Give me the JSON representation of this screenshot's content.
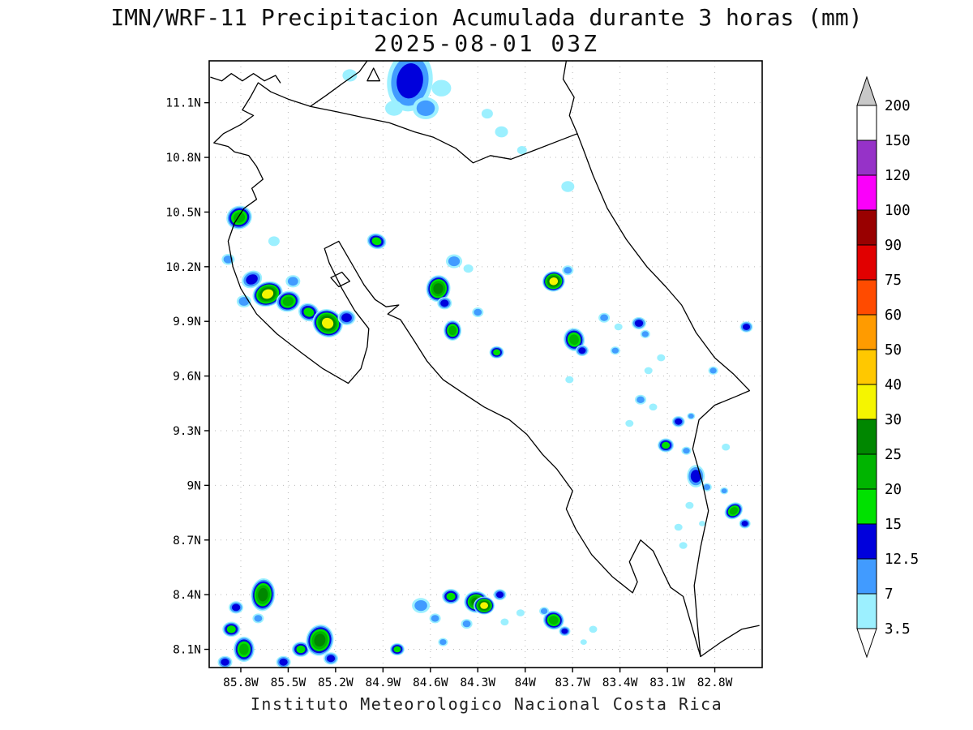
{
  "title": {
    "line1": "IMN/WRF-11 Precipitacion Acumulada durante 3 horas (mm)",
    "line2": "2025-08-01 03Z"
  },
  "caption": "Instituto Meteorologico Nacional Costa Rica",
  "chart_data": {
    "type": "heatmap",
    "title": "IMN/WRF-11 Precipitacion Acumulada durante 3 horas (mm)",
    "valid_time": "2025-08-01 03Z",
    "model": "IMN/WRF-11",
    "units": "mm",
    "x_axis": {
      "ticks": [
        "85.8W",
        "85.5W",
        "85.2W",
        "84.9W",
        "84.6W",
        "84.3W",
        "84W",
        "83.7W",
        "83.4W",
        "83.1W",
        "82.8W"
      ],
      "range_deg_w": [
        86.0,
        82.5
      ]
    },
    "y_axis": {
      "ticks": [
        "11.1N",
        "10.8N",
        "10.5N",
        "10.2N",
        "9.9N",
        "9.6N",
        "9.3N",
        "9N",
        "8.7N",
        "8.4N",
        "8.1N"
      ],
      "range_deg_n": [
        11.33,
        8.0
      ]
    },
    "colorbar": {
      "levels": [
        3.5,
        7,
        12.5,
        15,
        20,
        25,
        30,
        40,
        50,
        60,
        75,
        90,
        100,
        120,
        150,
        200
      ],
      "labels_top_to_bottom": [
        "200",
        "150",
        "120",
        "100",
        "90",
        "75",
        "60",
        "50",
        "40",
        "30",
        "25",
        "20",
        "15",
        "12.5",
        "7",
        "3.5"
      ],
      "colors_low_to_high": [
        "#9cf0ff",
        "#419bff",
        "#0000dc",
        "#00e100",
        "#00b400",
        "#008700",
        "#f5f500",
        "#ffc800",
        "#ff9b00",
        "#ff4b00",
        "#e10000",
        "#990000",
        "#fa00fa",
        "#9632c8",
        "#ffffff"
      ],
      "over_color": "#c8c8c8",
      "under_color": "#ffffff"
    },
    "cells_format": "[lon_w, lat_n, peak_mm, radius_px, aspect_ry_rx, rotation_deg]",
    "cells": [
      [
        84.73,
        11.22,
        12.5,
        28,
        1.35,
        8
      ],
      [
        84.63,
        11.07,
        7,
        16
      ],
      [
        84.83,
        11.07,
        3.5,
        11
      ],
      [
        84.53,
        11.18,
        3.5,
        12
      ],
      [
        85.11,
        11.25,
        3.5,
        9
      ],
      [
        84.15,
        10.94,
        3.5,
        8
      ],
      [
        84.02,
        10.84,
        3.5,
        6
      ],
      [
        84.24,
        11.04,
        3.5,
        7
      ],
      [
        83.73,
        10.64,
        3.5,
        8
      ],
      [
        85.81,
        10.47,
        20,
        16,
        0.9,
        -20
      ],
      [
        85.88,
        10.24,
        7,
        8
      ],
      [
        85.59,
        10.34,
        3.5,
        7
      ],
      [
        84.94,
        10.34,
        15,
        12,
        0.8,
        15
      ],
      [
        84.45,
        10.23,
        7,
        10
      ],
      [
        84.36,
        10.19,
        3.5,
        6
      ],
      [
        85.73,
        10.13,
        12.5,
        13,
        0.8,
        -25
      ],
      [
        85.63,
        10.05,
        30,
        19,
        0.8,
        -20
      ],
      [
        85.5,
        10.01,
        20,
        15,
        0.85,
        -15
      ],
      [
        85.78,
        10.01,
        7,
        9
      ],
      [
        85.37,
        9.95,
        15,
        13,
        0.85,
        20
      ],
      [
        85.25,
        9.89,
        30,
        19,
        0.9,
        25
      ],
      [
        85.13,
        9.92,
        12.5,
        11
      ],
      [
        85.47,
        10.12,
        7,
        9
      ],
      [
        84.55,
        10.08,
        25,
        15,
        1.1,
        10
      ],
      [
        84.51,
        10.0,
        12.5,
        9
      ],
      [
        84.46,
        9.85,
        20,
        11,
        1.15,
        0
      ],
      [
        84.3,
        9.95,
        7,
        7
      ],
      [
        84.18,
        9.73,
        15,
        9
      ],
      [
        83.82,
        10.12,
        30,
        14,
        0.9,
        -10
      ],
      [
        83.73,
        10.18,
        7,
        7
      ],
      [
        83.69,
        9.8,
        20,
        13,
        1.1,
        -15
      ],
      [
        83.64,
        9.74,
        12.5,
        8
      ],
      [
        83.5,
        9.92,
        7,
        7
      ],
      [
        83.41,
        9.87,
        3.5,
        5
      ],
      [
        83.28,
        9.89,
        12.5,
        9
      ],
      [
        83.24,
        9.83,
        7,
        6
      ],
      [
        83.14,
        9.7,
        3.5,
        5
      ],
      [
        83.22,
        9.63,
        3.5,
        5
      ],
      [
        82.6,
        9.87,
        12.5,
        8
      ],
      [
        82.81,
        9.63,
        7,
        6
      ],
      [
        83.27,
        9.47,
        7,
        7
      ],
      [
        83.19,
        9.43,
        3.5,
        5
      ],
      [
        83.03,
        9.35,
        12.5,
        8
      ],
      [
        82.95,
        9.38,
        7,
        5
      ],
      [
        83.11,
        9.22,
        15,
        10
      ],
      [
        82.98,
        9.19,
        7,
        6
      ],
      [
        82.92,
        9.05,
        12.5,
        11,
        1.25,
        0
      ],
      [
        82.85,
        8.99,
        7,
        6
      ],
      [
        82.96,
        8.89,
        3.5,
        5
      ],
      [
        83.03,
        8.77,
        3.5,
        5
      ],
      [
        82.88,
        8.79,
        3.5,
        4
      ],
      [
        82.68,
        8.86,
        20,
        12,
        0.8,
        -35
      ],
      [
        82.61,
        8.79,
        12.5,
        7
      ],
      [
        82.74,
        8.97,
        7,
        5
      ],
      [
        83.72,
        9.58,
        3.5,
        5
      ],
      [
        83.34,
        9.34,
        3.5,
        5
      ],
      [
        83.0,
        8.67,
        3.5,
        5
      ],
      [
        82.73,
        9.21,
        3.5,
        5
      ],
      [
        83.43,
        9.74,
        7,
        6
      ],
      [
        85.83,
        8.33,
        12.5,
        9
      ],
      [
        85.86,
        8.21,
        15,
        11
      ],
      [
        85.78,
        8.1,
        20,
        13,
        1.2,
        0
      ],
      [
        85.9,
        8.03,
        12.5,
        9
      ],
      [
        85.66,
        8.4,
        25,
        15,
        1.35,
        5
      ],
      [
        85.69,
        8.27,
        7,
        7
      ],
      [
        85.53,
        8.03,
        12.5,
        9
      ],
      [
        85.42,
        8.1,
        15,
        11
      ],
      [
        85.3,
        8.15,
        25,
        17,
        1.15,
        15
      ],
      [
        85.23,
        8.05,
        12.5,
        9
      ],
      [
        84.81,
        8.1,
        15,
        9
      ],
      [
        84.66,
        8.34,
        7,
        11
      ],
      [
        84.57,
        8.27,
        7,
        7
      ],
      [
        84.47,
        8.39,
        15,
        11
      ],
      [
        84.31,
        8.36,
        25,
        15,
        0.9,
        0
      ],
      [
        84.26,
        8.34,
        30,
        13,
        0.85,
        0
      ],
      [
        84.16,
        8.4,
        12.5,
        8
      ],
      [
        84.37,
        8.24,
        7,
        7
      ],
      [
        84.13,
        8.25,
        3.5,
        5
      ],
      [
        84.03,
        8.3,
        3.5,
        5
      ],
      [
        84.52,
        8.14,
        7,
        6
      ],
      [
        83.82,
        8.26,
        20,
        13,
        0.9,
        10
      ],
      [
        83.75,
        8.2,
        12.5,
        7
      ],
      [
        83.88,
        8.31,
        7,
        6
      ],
      [
        83.57,
        8.21,
        3.5,
        5
      ],
      [
        83.63,
        8.14,
        3.5,
        4
      ]
    ]
  },
  "map": {
    "costa_rica_outline": [
      [
        85.69,
        11.21
      ],
      [
        85.74,
        11.13
      ],
      [
        85.79,
        11.06
      ],
      [
        85.72,
        11.03
      ],
      [
        85.8,
        10.98
      ],
      [
        85.91,
        10.93
      ],
      [
        85.97,
        10.88
      ],
      [
        85.88,
        10.86
      ],
      [
        85.84,
        10.83
      ],
      [
        85.75,
        10.81
      ],
      [
        85.7,
        10.75
      ],
      [
        85.66,
        10.68
      ],
      [
        85.73,
        10.63
      ],
      [
        85.7,
        10.57
      ],
      [
        85.78,
        10.52
      ],
      [
        85.84,
        10.44
      ],
      [
        85.88,
        10.34
      ],
      [
        85.85,
        10.2
      ],
      [
        85.8,
        10.08
      ],
      [
        85.7,
        9.94
      ],
      [
        85.57,
        9.83
      ],
      [
        85.42,
        9.73
      ],
      [
        85.28,
        9.64
      ],
      [
        85.12,
        9.56
      ],
      [
        85.04,
        9.64
      ],
      [
        85.0,
        9.76
      ],
      [
        84.99,
        9.86
      ],
      [
        85.08,
        9.96
      ],
      [
        85.16,
        10.08
      ],
      [
        85.24,
        10.22
      ],
      [
        85.27,
        10.3
      ],
      [
        85.18,
        10.34
      ],
      [
        85.1,
        10.22
      ],
      [
        85.02,
        10.1
      ],
      [
        84.95,
        10.02
      ],
      [
        84.88,
        9.98
      ],
      [
        84.8,
        9.99
      ],
      [
        84.87,
        9.94
      ],
      [
        84.79,
        9.91
      ],
      [
        84.7,
        9.79
      ],
      [
        84.62,
        9.68
      ],
      [
        84.52,
        9.58
      ],
      [
        84.4,
        9.51
      ],
      [
        84.26,
        9.43
      ],
      [
        84.1,
        9.36
      ],
      [
        83.99,
        9.28
      ],
      [
        83.89,
        9.17
      ],
      [
        83.8,
        9.09
      ],
      [
        83.7,
        8.97
      ],
      [
        83.74,
        8.87
      ],
      [
        83.68,
        8.76
      ],
      [
        83.58,
        8.62
      ],
      [
        83.45,
        8.5
      ],
      [
        83.32,
        8.41
      ],
      [
        83.29,
        8.47
      ],
      [
        83.34,
        8.58
      ],
      [
        83.27,
        8.7
      ],
      [
        83.19,
        8.64
      ],
      [
        83.13,
        8.53
      ],
      [
        83.08,
        8.44
      ],
      [
        83.0,
        8.39
      ],
      [
        82.95,
        8.24
      ],
      [
        82.89,
        8.06
      ],
      [
        82.91,
        8.24
      ],
      [
        82.93,
        8.45
      ],
      [
        82.89,
        8.66
      ],
      [
        82.84,
        8.86
      ],
      [
        82.88,
        9.02
      ],
      [
        82.94,
        9.2
      ],
      [
        82.9,
        9.36
      ],
      [
        82.8,
        9.44
      ],
      [
        82.66,
        9.49
      ],
      [
        82.58,
        9.52
      ],
      [
        82.68,
        9.61
      ],
      [
        82.8,
        9.7
      ],
      [
        82.92,
        9.84
      ],
      [
        83.01,
        9.99
      ],
      [
        83.11,
        10.09
      ],
      [
        83.23,
        10.2
      ],
      [
        83.36,
        10.35
      ],
      [
        83.48,
        10.52
      ],
      [
        83.57,
        10.7
      ],
      [
        83.63,
        10.84
      ],
      [
        83.67,
        10.93
      ],
      [
        83.79,
        10.89
      ],
      [
        83.94,
        10.84
      ],
      [
        84.09,
        10.79
      ],
      [
        84.22,
        10.81
      ],
      [
        84.33,
        10.77
      ],
      [
        84.44,
        10.85
      ],
      [
        84.58,
        10.91
      ],
      [
        84.7,
        10.94
      ],
      [
        84.86,
        10.99
      ],
      [
        85.03,
        11.02
      ],
      [
        85.19,
        11.05
      ],
      [
        85.36,
        11.08
      ],
      [
        85.5,
        11.12
      ],
      [
        85.61,
        11.16
      ]
    ],
    "nicaragua_coast_west": [
      [
        85.99,
        11.24
      ],
      [
        85.92,
        11.22
      ],
      [
        85.86,
        11.26
      ],
      [
        85.79,
        11.22
      ],
      [
        85.72,
        11.26
      ],
      [
        85.65,
        11.22
      ],
      [
        85.58,
        11.25
      ],
      [
        85.55,
        11.21
      ]
    ],
    "lake_nicaragua_ne_shore": [
      [
        85.36,
        11.08
      ],
      [
        85.26,
        11.14
      ],
      [
        85.15,
        11.21
      ],
      [
        85.05,
        11.27
      ],
      [
        85.0,
        11.33
      ]
    ],
    "nicaragua_caribbean_coast": [
      [
        83.67,
        10.93
      ],
      [
        83.72,
        11.03
      ],
      [
        83.69,
        11.13
      ],
      [
        83.76,
        11.23
      ],
      [
        83.74,
        11.33
      ]
    ],
    "panama_coast": [
      [
        82.89,
        8.06
      ],
      [
        82.76,
        8.14
      ],
      [
        82.63,
        8.21
      ],
      [
        82.52,
        8.23
      ]
    ],
    "islands": [
      [
        [
          85.23,
          10.14
        ],
        [
          85.16,
          10.17
        ],
        [
          85.11,
          10.12
        ],
        [
          85.18,
          10.09
        ]
      ],
      [
        [
          85.0,
          11.22
        ],
        [
          84.96,
          11.29
        ],
        [
          84.92,
          11.22
        ]
      ]
    ]
  }
}
